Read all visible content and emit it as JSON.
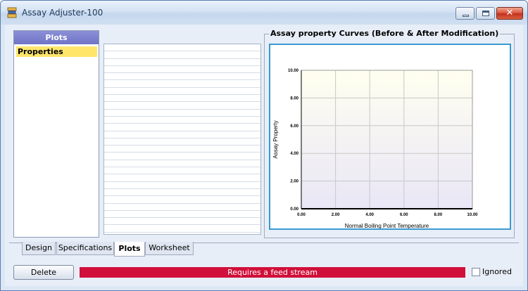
{
  "window": {
    "title": "Assay Adjuster-100"
  },
  "nav": {
    "header": "Plots",
    "items": [
      {
        "label": "Properties"
      }
    ]
  },
  "plot_group": {
    "legend": "Assay property Curves (Before & After Modification)"
  },
  "chart_data": {
    "type": "line",
    "title": "",
    "xlabel": "Normal Boiling Point Temperature",
    "ylabel": "Assay Property",
    "xlim": [
      0,
      10
    ],
    "ylim": [
      0,
      10
    ],
    "xticks": [
      "0.00",
      "2.00",
      "4.00",
      "6.00",
      "8.00",
      "10.00"
    ],
    "yticks": [
      "0.00",
      "2.00",
      "4.00",
      "6.00",
      "8.00",
      "10.00"
    ],
    "grid": true,
    "series": []
  },
  "tabs": [
    {
      "label": "Design",
      "active": false
    },
    {
      "label": "Specifications",
      "active": false
    },
    {
      "label": "Plots",
      "active": true
    },
    {
      "label": "Worksheet",
      "active": false
    }
  ],
  "footer": {
    "delete_label": "Delete",
    "status_text": "Requires a feed stream",
    "status_color": "#d0103a",
    "ignored_label": "Ignored",
    "ignored_checked": false
  }
}
